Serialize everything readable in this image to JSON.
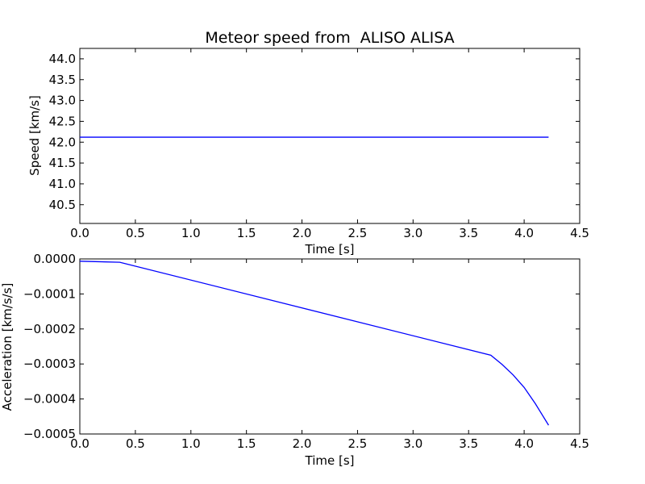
{
  "chart_data": [
    {
      "type": "line",
      "title": "Meteor speed from  ALISO ALISA",
      "xlabel": "Time [s]",
      "ylabel": "Speed [km/s]",
      "xlim": [
        0.0,
        4.5
      ],
      "ylim": [
        40.05,
        44.25
      ],
      "x_ticks": [
        "0.0",
        "0.5",
        "1.0",
        "1.5",
        "2.0",
        "2.5",
        "3.0",
        "3.5",
        "4.0",
        "4.5"
      ],
      "y_ticks": [
        "40.5",
        "41.0",
        "41.5",
        "42.0",
        "42.5",
        "43.0",
        "43.5",
        "44.0"
      ],
      "legend": "none",
      "grid": false,
      "series": [
        {
          "x": [
            0.0,
            4.22
          ],
          "y": [
            42.12,
            42.12
          ],
          "color": "#0000ff"
        }
      ]
    },
    {
      "type": "line",
      "title": "",
      "xlabel": "Time [s]",
      "ylabel": "Acceleration [km/s/s]",
      "xlim": [
        0.0,
        4.5
      ],
      "ylim": [
        -0.0005,
        0.0
      ],
      "x_ticks": [
        "0.0",
        "0.5",
        "1.0",
        "1.5",
        "2.0",
        "2.5",
        "3.0",
        "3.5",
        "4.0",
        "4.5"
      ],
      "y_ticks": [
        "0.0000",
        "−0.0001",
        "−0.0002",
        "−0.0003",
        "−0.0004",
        "−0.0005"
      ],
      "legend": "none",
      "grid": false,
      "series": [
        {
          "x": [
            0.0,
            0.36,
            3.7,
            3.8,
            3.9,
            4.0,
            4.1,
            4.22
          ],
          "y": [
            -6.5e-06,
            -9.5e-06,
            -0.000275,
            -0.000301,
            -0.000331,
            -0.000367,
            -0.000413,
            -0.000475
          ],
          "color": "#0000ff"
        }
      ]
    }
  ]
}
